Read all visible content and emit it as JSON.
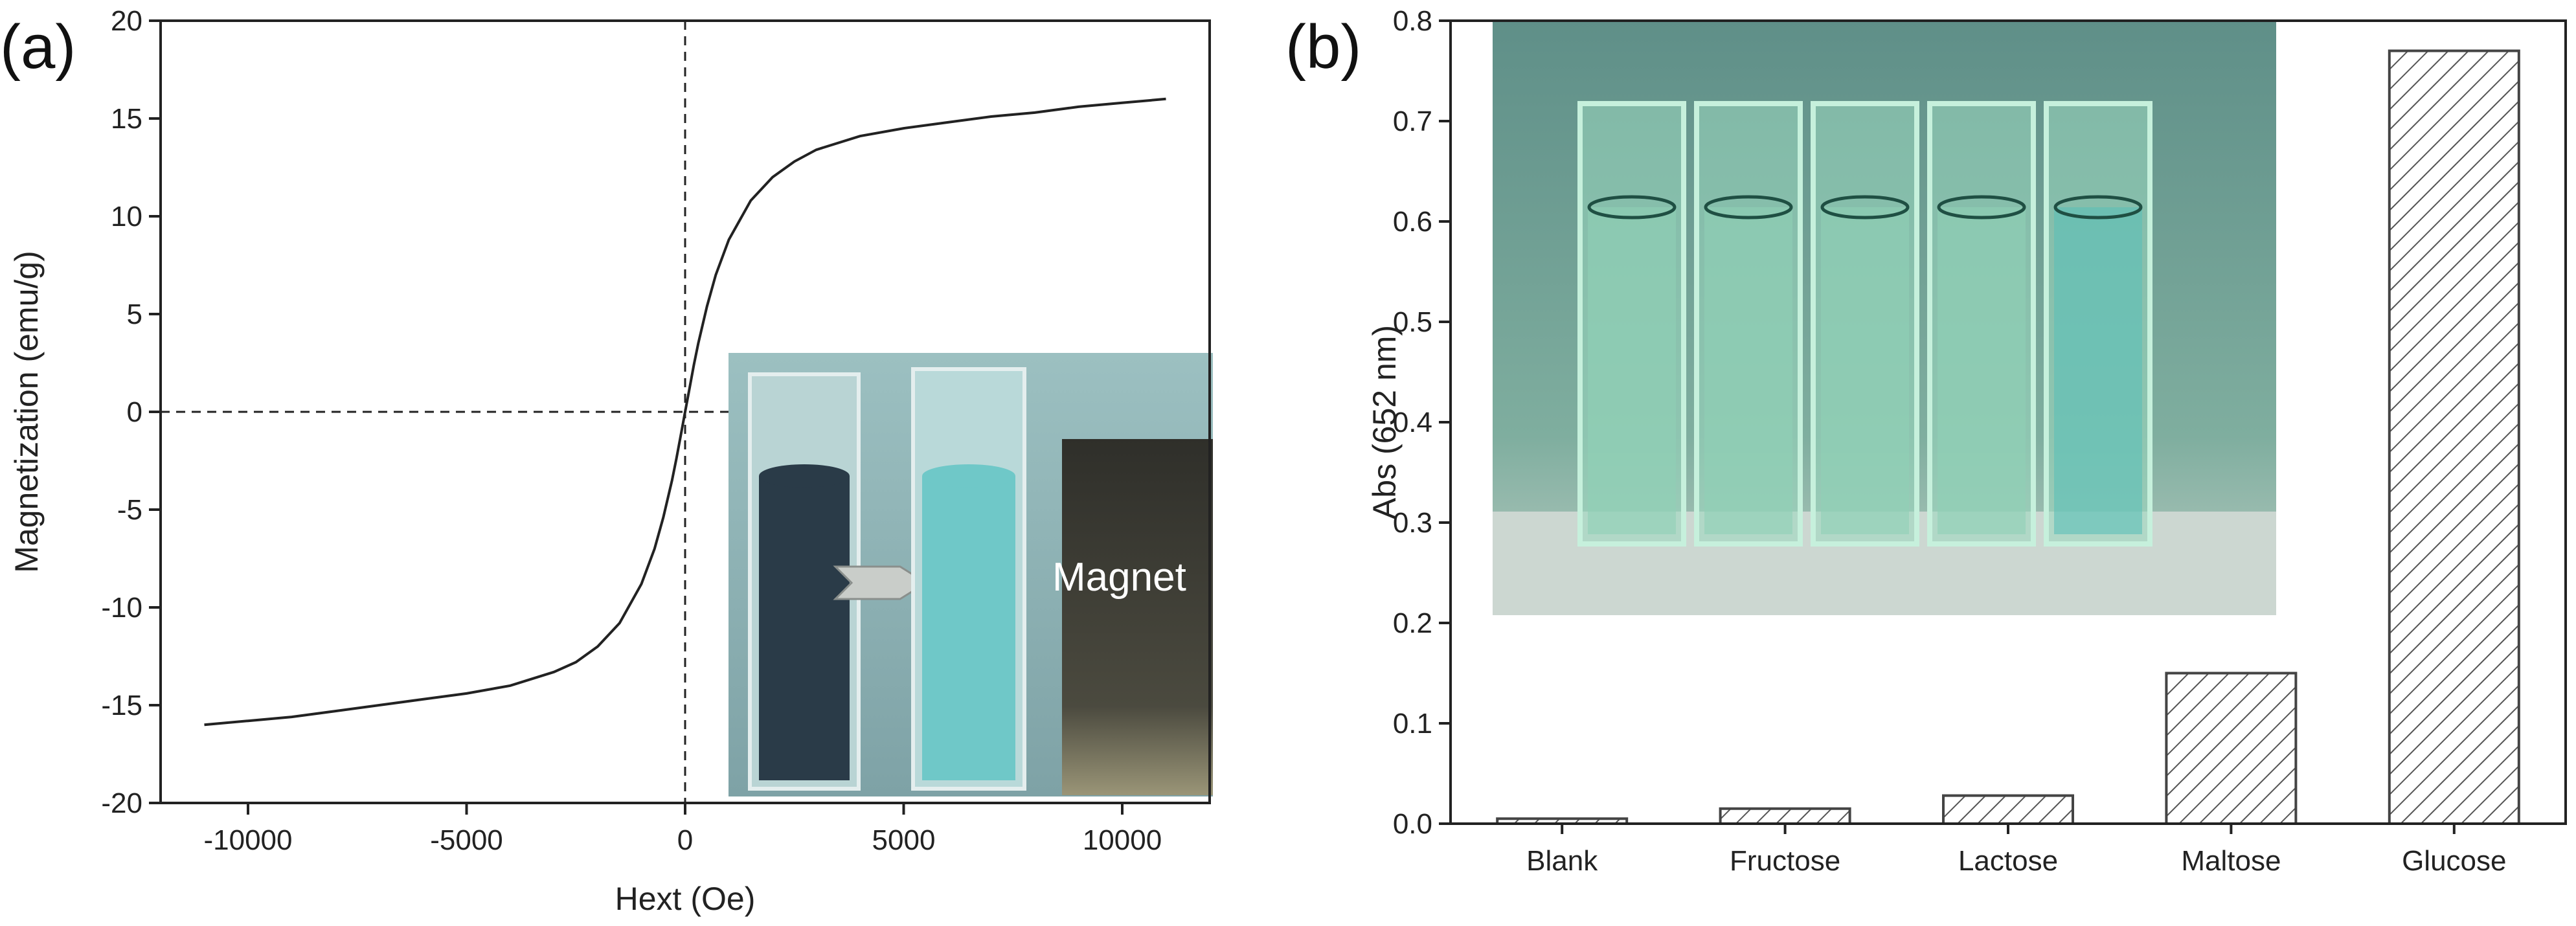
{
  "chart_data": [
    {
      "panel": "(a)",
      "type": "line",
      "xlabel": "Hext (Oe)",
      "ylabel": "Magnetization (emu/g)",
      "xlim": [
        -12000,
        12000
      ],
      "ylim": [
        -20,
        20
      ],
      "x_ticks": [
        -10000,
        -5000,
        0,
        5000,
        10000
      ],
      "y_ticks": [
        -20,
        -15,
        -10,
        -5,
        0,
        5,
        10,
        15,
        20
      ],
      "x_tick_labels": [
        "-10000",
        "-5000",
        "0",
        "5000",
        "10000"
      ],
      "y_tick_labels": [
        "-20",
        "-15",
        "-10",
        "-5",
        "0",
        "5",
        "10",
        "15",
        "20"
      ],
      "grid": false,
      "reference_lines": {
        "x": 0,
        "y": 0,
        "style": "dashed"
      },
      "series": [
        {
          "x": [
            -11000,
            -10000,
            -9000,
            -8000,
            -7000,
            -6000,
            -5000,
            -4000,
            -3000,
            -2500,
            -2000,
            -1500,
            -1000,
            -700,
            -500,
            -300,
            -200,
            -100,
            0,
            100,
            200,
            300,
            500,
            700,
            1000,
            1500,
            2000,
            2500,
            3000,
            4000,
            5000,
            6000,
            7000,
            8000,
            9000,
            10000,
            11000
          ],
          "y": [
            -16.0,
            -15.8,
            -15.6,
            -15.3,
            -15.0,
            -14.7,
            -14.4,
            -14.0,
            -13.3,
            -12.8,
            -12.0,
            -10.8,
            -8.8,
            -7.0,
            -5.4,
            -3.5,
            -2.4,
            -1.2,
            0,
            1.2,
            2.4,
            3.5,
            5.4,
            7.0,
            8.8,
            10.8,
            12.0,
            12.8,
            13.4,
            14.1,
            14.5,
            14.8,
            15.1,
            15.3,
            15.6,
            15.8,
            16.0
          ]
        }
      ],
      "inset": {
        "label": "Magnet",
        "colors": {
          "background": "#8fb3b5",
          "dark_solution": "#2a3b48",
          "clear_solution": "#6fc8c8",
          "magnet": "#4a4a3e",
          "arrow": "#c9cdc9"
        }
      }
    },
    {
      "panel": "(b)",
      "type": "bar",
      "ylabel": "Abs (652 nm)",
      "xlabel": "",
      "categories": [
        "Blank",
        "Fructose",
        "Lactose",
        "Maltose",
        "Glucose"
      ],
      "values": [
        0.005,
        0.015,
        0.028,
        0.15,
        0.77
      ],
      "ylim": [
        0.0,
        0.8
      ],
      "y_ticks": [
        0.0,
        0.1,
        0.2,
        0.3,
        0.4,
        0.5,
        0.6,
        0.7,
        0.8
      ],
      "y_tick_labels": [
        "0.0",
        "0.1",
        "0.2",
        "0.3",
        "0.4",
        "0.5",
        "0.6",
        "0.7",
        "0.8"
      ],
      "grid": false,
      "bar_fill": "hatched",
      "inset": {
        "colors": {
          "background": "#6f9e95",
          "glass": "#9bd8c0",
          "solution": "#5cc0b8",
          "bench": "#d4dcd6"
        }
      }
    }
  ]
}
